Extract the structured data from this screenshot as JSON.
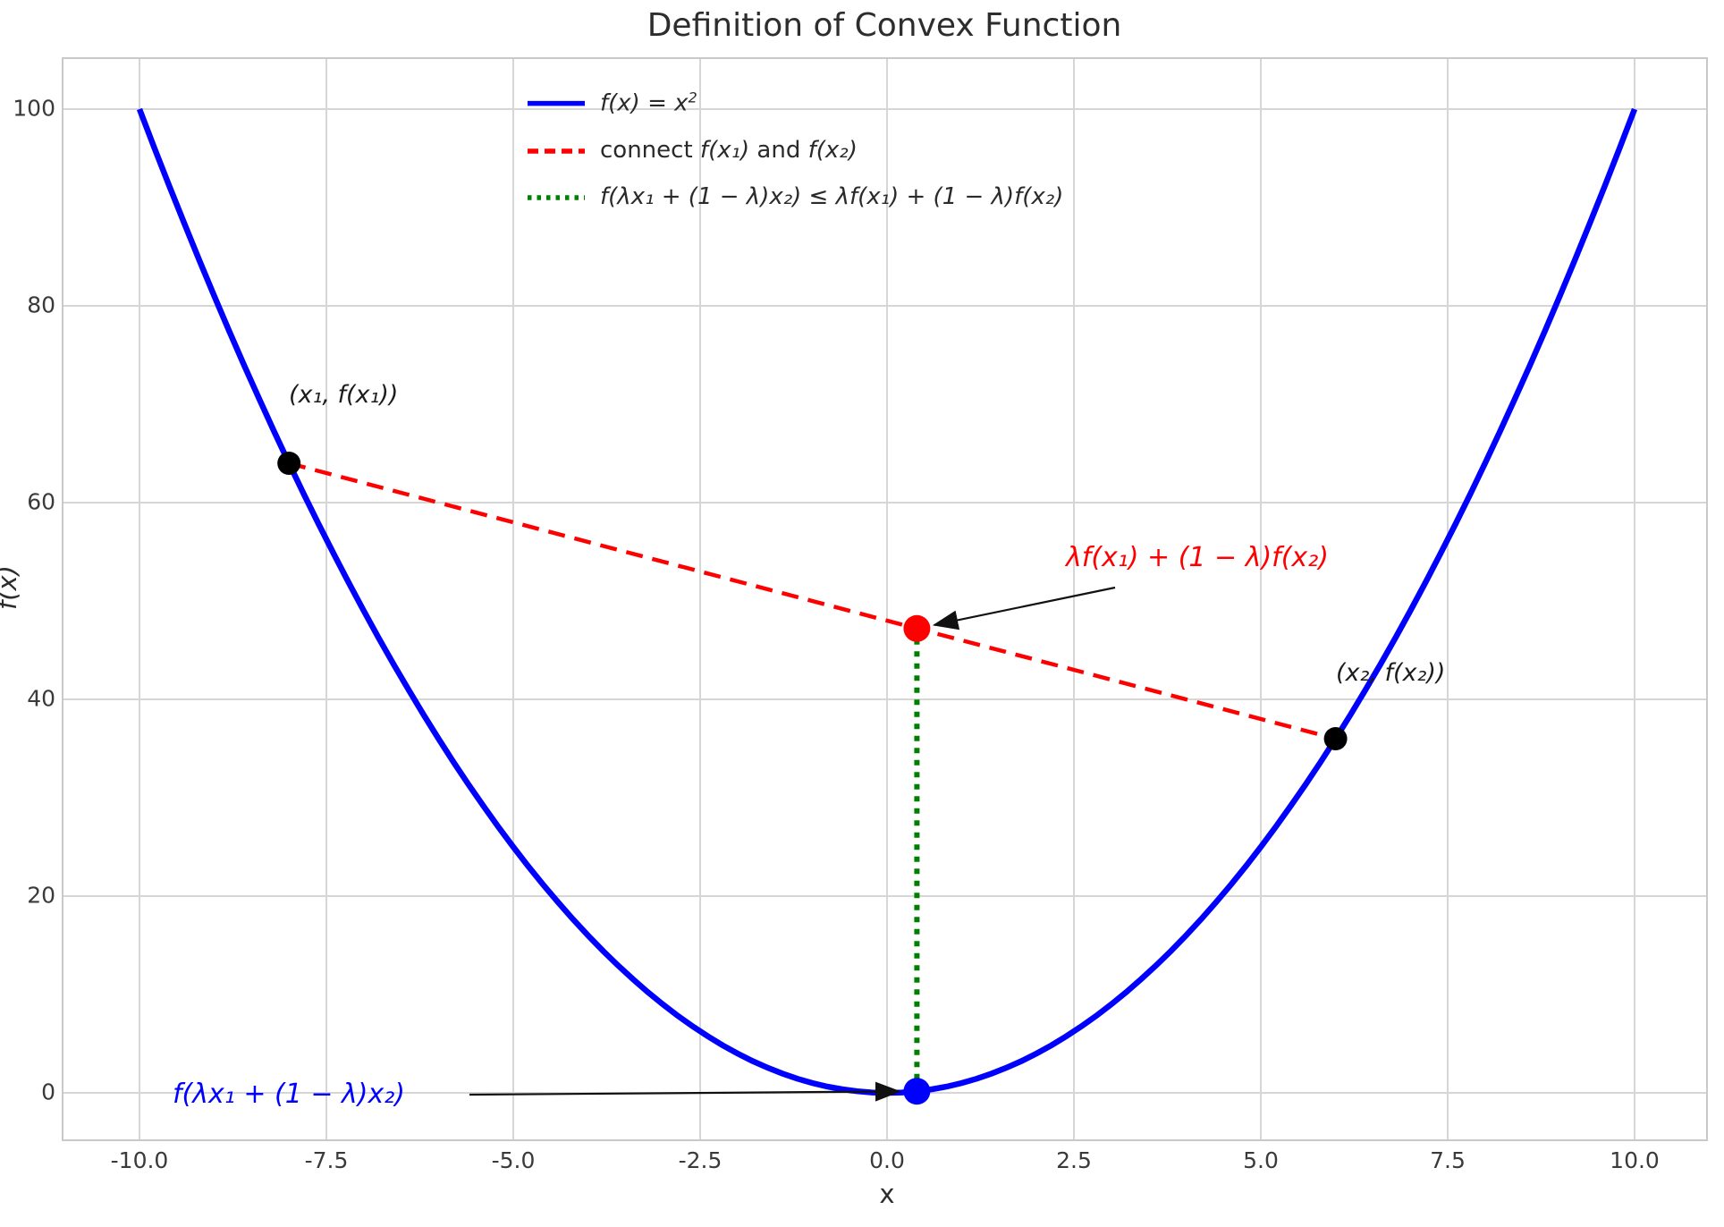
{
  "title": "Definition of Convex Function",
  "axis": {
    "xlabel": "x",
    "ylabel": "f(x)",
    "x_tick_labels": [
      "-10.0",
      "-7.5",
      "-5.0",
      "-2.5",
      "0.0",
      "2.5",
      "5.0",
      "7.5",
      "10.0"
    ],
    "y_tick_labels": [
      "0",
      "20",
      "40",
      "60",
      "80",
      "100"
    ]
  },
  "chart_data": {
    "type": "line",
    "title": "Definition of Convex Function",
    "xlabel": "x",
    "ylabel": "f(x)",
    "xlim": [
      -11,
      11
    ],
    "ylim": [
      -5,
      105
    ],
    "grid": true,
    "legend_position": "upper center-left",
    "x_ticks": [
      -10,
      -7.5,
      -5,
      -2.5,
      0,
      2.5,
      5,
      7.5,
      10
    ],
    "y_ticks": [
      0,
      20,
      40,
      60,
      80,
      100
    ],
    "series": [
      {
        "name": "f(x) = x²",
        "fn": "x^2",
        "x_range": [
          -10,
          10
        ],
        "color": "#0000ff",
        "style": "solid",
        "width": 6.5
      },
      {
        "name": "connect f(x₁) and f(x₂)",
        "points": [
          [
            -8,
            64
          ],
          [
            6,
            36
          ]
        ],
        "color": "#ff0000",
        "style": "dashed",
        "width": 4.5
      },
      {
        "name": "f(λx₁ + (1 − λ)x₂) ≤ λf(x₁) + (1 − λ)f(x₂)",
        "points": [
          [
            0.4,
            0.16
          ],
          [
            0.4,
            47.2
          ]
        ],
        "color": "#008000",
        "style": "dotted",
        "width": 6
      }
    ],
    "markers": [
      {
        "x": -8,
        "y": 64,
        "color": "#000000",
        "r": 13,
        "label": "(x₁, f(x₁))"
      },
      {
        "x": 6,
        "y": 36,
        "color": "#000000",
        "r": 13,
        "label": "(x₂, f(x₂))"
      },
      {
        "x": 0.4,
        "y": 47.2,
        "color": "#ff0000",
        "r": 15,
        "label": "λf(x₁) + (1 − λ)f(x₂)"
      },
      {
        "x": 0.4,
        "y": 0.16,
        "color": "#0000ff",
        "r": 15,
        "label": "f(λx₁ + (1 − λ)x₂)"
      }
    ]
  },
  "legend": {
    "items": [
      {
        "color": "#0000ff",
        "style": "solid",
        "segments": [
          {
            "t": "f(x) = x",
            "i": 1
          },
          {
            "t": "2",
            "i": 1,
            "sup": 1
          }
        ]
      },
      {
        "color": "#ff0000",
        "style": "dashed",
        "segments": [
          {
            "t": "connect ",
            "i": 0
          },
          {
            "t": "f(x₁)",
            "i": 1
          },
          {
            "t": " and ",
            "i": 0
          },
          {
            "t": "f(x₂)",
            "i": 1
          }
        ]
      },
      {
        "color": "#008000",
        "style": "dotted",
        "segments": [
          {
            "t": "f(λx₁ + (1 − λ)x₂) ≤ λf(x₁) + (1 − λ)f(x₂)",
            "i": 1
          }
        ]
      }
    ]
  },
  "annotations": {
    "p1_label": "(x₁, f(x₁))",
    "p2_label": "(x₂, f(x₂))",
    "chord_point_label": "λf(x₁) + (1 − λ)f(x₂)",
    "curve_point_label": "f(λx₁ + (1 − λ)x₂)"
  },
  "colors": {
    "curve": "#0000ff",
    "chord": "#ff0000",
    "inequality": "#008000",
    "grid": "#d6d6d6",
    "frame": "#c9c9c9",
    "text": "#2d2d2d",
    "arrow": "#111111"
  }
}
